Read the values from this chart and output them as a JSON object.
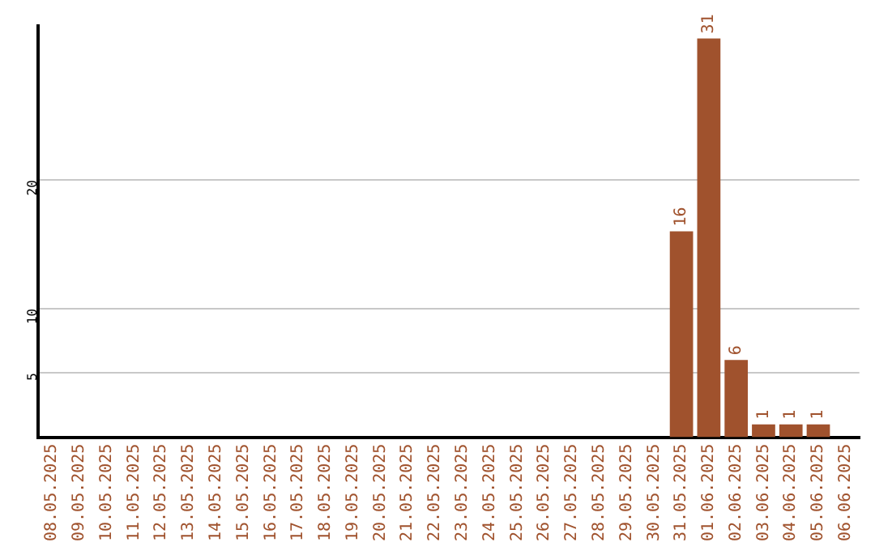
{
  "chart_data": {
    "type": "bar",
    "categories": [
      "08.05.2025",
      "09.05.2025",
      "10.05.2025",
      "11.05.2025",
      "12.05.2025",
      "13.05.2025",
      "14.05.2025",
      "15.05.2025",
      "16.05.2025",
      "17.05.2025",
      "18.05.2025",
      "19.05.2025",
      "20.05.2025",
      "21.05.2025",
      "22.05.2025",
      "23.05.2025",
      "24.05.2025",
      "25.05.2025",
      "26.05.2025",
      "27.05.2025",
      "28.05.2025",
      "29.05.2025",
      "30.05.2025",
      "31.05.2025",
      "01.06.2025",
      "02.06.2025",
      "03.06.2025",
      "04.06.2025",
      "05.06.2025",
      "06.06.2025"
    ],
    "values": [
      0,
      0,
      0,
      0,
      0,
      0,
      0,
      0,
      0,
      0,
      0,
      0,
      0,
      0,
      0,
      0,
      0,
      0,
      0,
      0,
      0,
      0,
      0,
      16,
      31,
      6,
      1,
      1,
      1,
      0
    ],
    "value_labels": [
      null,
      null,
      null,
      null,
      null,
      null,
      null,
      null,
      null,
      null,
      null,
      null,
      null,
      null,
      null,
      null,
      null,
      null,
      null,
      null,
      null,
      null,
      null,
      "16",
      "31",
      "6",
      "1",
      "1",
      "1",
      null
    ],
    "color": "#a0522d",
    "ylim": [
      0,
      32
    ],
    "yticks": [
      5,
      10,
      20
    ],
    "grid": "y",
    "legend": false
  }
}
